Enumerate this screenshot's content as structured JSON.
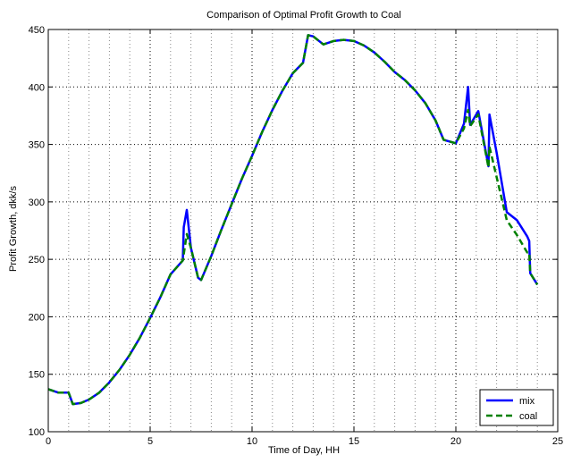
{
  "chart_data": {
    "type": "line",
    "title": "Comparison of Optimal Profit Growth to Coal",
    "xlabel": "Time of Day, HH",
    "ylabel": "Profit Growth, dkk/s",
    "xlim": [
      0,
      25
    ],
    "ylim": [
      100,
      450
    ],
    "xticks": [
      0,
      5,
      10,
      15,
      20,
      25
    ],
    "yticks": [
      100,
      150,
      200,
      250,
      300,
      350,
      400,
      450
    ],
    "xtick_labels": [
      "0",
      "5",
      "10",
      "15",
      "20",
      "25"
    ],
    "ytick_labels": [
      "100",
      "150",
      "200",
      "250",
      "300",
      "350",
      "400",
      "450"
    ],
    "grid": true,
    "legend_position": "bottom-right",
    "series": [
      {
        "name": "mix",
        "color": "#0000ff",
        "style": "solid",
        "points": [
          [
            0,
            137
          ],
          [
            0.5,
            134
          ],
          [
            1,
            134
          ],
          [
            1.2,
            124
          ],
          [
            1.6,
            125
          ],
          [
            2,
            128
          ],
          [
            2.5,
            134
          ],
          [
            3,
            143
          ],
          [
            3.5,
            154
          ],
          [
            4,
            167
          ],
          [
            4.5,
            182
          ],
          [
            5,
            199
          ],
          [
            5.5,
            217
          ],
          [
            6,
            237
          ],
          [
            6.6,
            249
          ],
          [
            6.65,
            278
          ],
          [
            6.8,
            293
          ],
          [
            7.0,
            260
          ],
          [
            7.35,
            234
          ],
          [
            7.5,
            232
          ],
          [
            8,
            253
          ],
          [
            8.5,
            276
          ],
          [
            9,
            298
          ],
          [
            9.5,
            320
          ],
          [
            10,
            340
          ],
          [
            10.5,
            361
          ],
          [
            11,
            380
          ],
          [
            11.5,
            397
          ],
          [
            12,
            412
          ],
          [
            12.5,
            421
          ],
          [
            12.75,
            445
          ],
          [
            13,
            444
          ],
          [
            13.5,
            437
          ],
          [
            14,
            440
          ],
          [
            14.5,
            441
          ],
          [
            15,
            440
          ],
          [
            15.5,
            436
          ],
          [
            16,
            430
          ],
          [
            16.5,
            422
          ],
          [
            17,
            413
          ],
          [
            17.5,
            406
          ],
          [
            18,
            397
          ],
          [
            18.5,
            386
          ],
          [
            19,
            371
          ],
          [
            19.4,
            354
          ],
          [
            20,
            351
          ],
          [
            20.4,
            368
          ],
          [
            20.6,
            400
          ],
          [
            20.7,
            367
          ],
          [
            21.1,
            379
          ],
          [
            21.6,
            331
          ],
          [
            21.65,
            376
          ],
          [
            22,
            343
          ],
          [
            22.5,
            291
          ],
          [
            23,
            284
          ],
          [
            23.5,
            270
          ],
          [
            23.6,
            266
          ],
          [
            23.65,
            238
          ],
          [
            24,
            228
          ]
        ]
      },
      {
        "name": "coal",
        "color": "#008000",
        "style": "dashed",
        "points": [
          [
            0,
            137
          ],
          [
            0.5,
            134
          ],
          [
            1,
            134
          ],
          [
            1.2,
            124
          ],
          [
            1.6,
            125
          ],
          [
            2,
            128
          ],
          [
            2.5,
            134
          ],
          [
            3,
            143
          ],
          [
            3.5,
            154
          ],
          [
            4,
            167
          ],
          [
            4.5,
            182
          ],
          [
            5,
            199
          ],
          [
            5.5,
            217
          ],
          [
            6,
            237
          ],
          [
            6.6,
            249
          ],
          [
            6.8,
            272
          ],
          [
            7.0,
            260
          ],
          [
            7.35,
            234
          ],
          [
            7.5,
            232
          ],
          [
            8,
            253
          ],
          [
            8.5,
            276
          ],
          [
            9,
            298
          ],
          [
            9.5,
            320
          ],
          [
            10,
            340
          ],
          [
            10.5,
            361
          ],
          [
            11,
            380
          ],
          [
            11.5,
            397
          ],
          [
            12,
            412
          ],
          [
            12.5,
            421
          ],
          [
            12.75,
            445
          ],
          [
            13,
            444
          ],
          [
            13.5,
            437
          ],
          [
            14,
            440
          ],
          [
            14.5,
            441
          ],
          [
            15,
            440
          ],
          [
            15.5,
            436
          ],
          [
            16,
            430
          ],
          [
            16.5,
            422
          ],
          [
            17,
            413
          ],
          [
            17.5,
            406
          ],
          [
            18,
            397
          ],
          [
            18.5,
            386
          ],
          [
            19,
            371
          ],
          [
            19.4,
            354
          ],
          [
            20,
            351
          ],
          [
            20.4,
            364
          ],
          [
            20.6,
            380
          ],
          [
            20.7,
            366
          ],
          [
            21.1,
            376
          ],
          [
            21.6,
            330
          ],
          [
            21.65,
            348
          ],
          [
            22.5,
            284
          ],
          [
            23,
            271
          ],
          [
            23.5,
            256
          ],
          [
            23.6,
            256
          ],
          [
            23.65,
            238
          ],
          [
            24,
            228
          ]
        ]
      }
    ]
  }
}
